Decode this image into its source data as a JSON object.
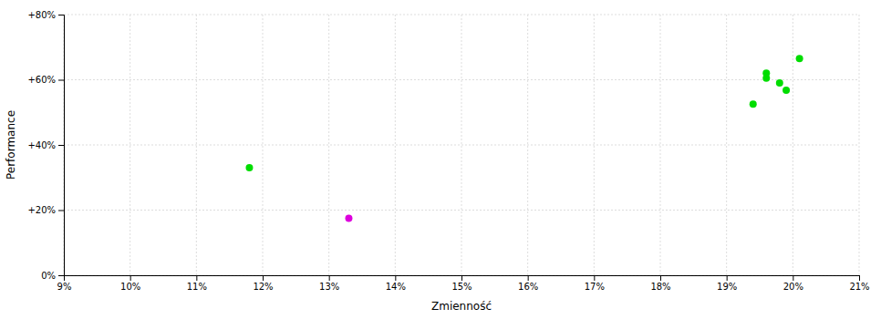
{
  "chart_data": {
    "type": "scatter",
    "xlabel": "Zmienność",
    "ylabel": "Performance",
    "xlim": [
      0.09,
      0.21
    ],
    "ylim": [
      0.0,
      0.8
    ],
    "xticks": [
      {
        "value": 0.09,
        "label": "9%"
      },
      {
        "value": 0.1,
        "label": "10%"
      },
      {
        "value": 0.11,
        "label": "11%"
      },
      {
        "value": 0.12,
        "label": "12%"
      },
      {
        "value": 0.13,
        "label": "13%"
      },
      {
        "value": 0.14,
        "label": "14%"
      },
      {
        "value": 0.15,
        "label": "15%"
      },
      {
        "value": 0.16,
        "label": "16%"
      },
      {
        "value": 0.17,
        "label": "17%"
      },
      {
        "value": 0.18,
        "label": "18%"
      },
      {
        "value": 0.19,
        "label": "19%"
      },
      {
        "value": 0.2,
        "label": "20%"
      },
      {
        "value": 0.21,
        "label": "21%"
      }
    ],
    "yticks": [
      {
        "value": 0.0,
        "label": "0%"
      },
      {
        "value": 0.2,
        "label": "+20%"
      },
      {
        "value": 0.4,
        "label": "+40%"
      },
      {
        "value": 0.6,
        "label": "+60%"
      },
      {
        "value": 0.8,
        "label": "+80%"
      }
    ],
    "grid": true,
    "series": [
      {
        "color": "#00dd00",
        "x": [
          0.118,
          0.196,
          0.196,
          0.198,
          0.199,
          0.194,
          0.201
        ],
        "values": [
          0.33,
          0.62,
          0.605,
          0.59,
          0.568,
          0.525,
          0.665
        ]
      },
      {
        "color": "#dd00dd",
        "x": [
          0.133
        ],
        "values": [
          0.175
        ]
      }
    ]
  }
}
